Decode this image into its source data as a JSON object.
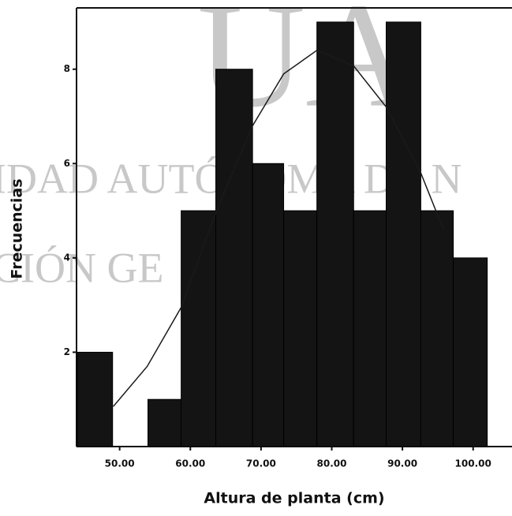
{
  "chart_data": {
    "type": "histogram",
    "watermark": [
      "UA",
      "IDAD AUTÓNOMA DE N",
      "CIÓN GE"
    ],
    "xlabel": "Altura de planta (cm)",
    "ylabel": "Frecuencias",
    "bins": [
      44,
      49,
      54,
      58.7,
      63.6,
      68.8,
      73.2,
      77.9,
      83.1,
      87.7,
      92.6,
      97.2,
      102
    ],
    "counts": [
      2,
      0,
      1,
      5,
      8,
      6,
      5,
      9,
      5,
      9,
      5,
      4
    ],
    "color": "#141414",
    "curve": {
      "x": [
        49.1,
        53.9,
        58.7,
        63.6,
        68.8,
        73.2,
        77.9,
        83.1,
        87.7,
        92.6,
        95.8
      ],
      "y": [
        0.85,
        1.7,
        2.95,
        4.96,
        6.8,
        7.9,
        8.4,
        8.07,
        7.2,
        5.8,
        4.6
      ],
      "color": "#1a1a1a"
    },
    "xlim": [
      43.9,
      105.5
    ],
    "ylim": [
      0,
      9.3
    ],
    "xticks": [
      {
        "value": 50,
        "label": "50.00"
      },
      {
        "value": 60,
        "label": "60.00"
      },
      {
        "value": 70,
        "label": "70.00"
      },
      {
        "value": 80,
        "label": "80.00"
      },
      {
        "value": 90,
        "label": "90.00"
      },
      {
        "value": 100,
        "label": "100.00"
      }
    ],
    "yticks": [
      2,
      4,
      6,
      8
    ]
  }
}
